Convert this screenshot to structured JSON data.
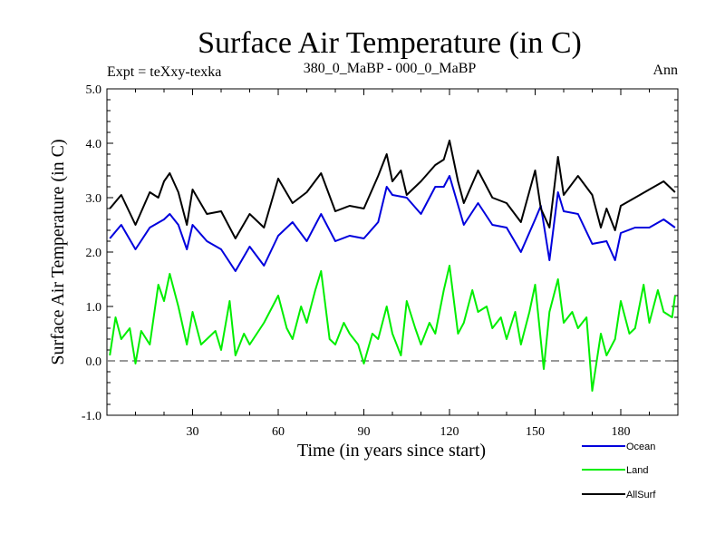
{
  "chart_data": {
    "type": "line",
    "title": "Surface Air Temperature (in C)",
    "subtitle_left": "Expt = teXxy-texka",
    "subtitle_center": "380_0_MaBP - 000_0_MaBP",
    "subtitle_right": "Ann",
    "xlabel": "Time (in years since start)",
    "ylabel": "Surface Air Temperature (in C)",
    "xlim": [
      0,
      200
    ],
    "ylim": [
      -1.0,
      5.0
    ],
    "xticks": [
      30,
      60,
      90,
      120,
      150,
      180
    ],
    "xtick_labels": [
      "30",
      "60",
      "90",
      "120",
      "150",
      "180"
    ],
    "yticks": [
      -1.0,
      0.0,
      1.0,
      2.0,
      3.0,
      4.0,
      5.0
    ],
    "ytick_labels": [
      "-1.0",
      "0.0",
      "1.0",
      "2.0",
      "3.0",
      "4.0",
      "5.0"
    ],
    "reference_line": 0.0,
    "legend_position": "bottom-right",
    "series": [
      {
        "name": "Ocean",
        "color": "#0000dd",
        "x": [
          1,
          5,
          10,
          15,
          20,
          22,
          25,
          28,
          30,
          35,
          40,
          45,
          50,
          55,
          60,
          65,
          70,
          75,
          80,
          85,
          90,
          95,
          98,
          100,
          105,
          110,
          115,
          118,
          120,
          125,
          130,
          135,
          140,
          145,
          150,
          152,
          155,
          158,
          160,
          165,
          170,
          175,
          178,
          180,
          185,
          190,
          195,
          199
        ],
        "values": [
          2.25,
          2.5,
          2.05,
          2.45,
          2.6,
          2.7,
          2.5,
          2.05,
          2.5,
          2.2,
          2.05,
          1.65,
          2.1,
          1.75,
          2.3,
          2.55,
          2.2,
          2.7,
          2.2,
          2.3,
          2.25,
          2.55,
          3.2,
          3.05,
          3.0,
          2.7,
          3.2,
          3.2,
          3.4,
          2.5,
          2.9,
          2.5,
          2.45,
          2.0,
          2.6,
          2.85,
          1.85,
          3.1,
          2.75,
          2.7,
          2.15,
          2.2,
          1.85,
          2.35,
          2.45,
          2.45,
          2.6,
          2.45
        ]
      },
      {
        "name": "Land",
        "color": "#00ee00",
        "x": [
          1,
          3,
          5,
          8,
          10,
          12,
          15,
          18,
          20,
          22,
          25,
          28,
          30,
          33,
          35,
          38,
          40,
          43,
          45,
          48,
          50,
          55,
          60,
          63,
          65,
          68,
          70,
          73,
          75,
          78,
          80,
          83,
          85,
          88,
          90,
          93,
          95,
          98,
          100,
          103,
          105,
          108,
          110,
          113,
          115,
          118,
          120,
          123,
          125,
          128,
          130,
          133,
          135,
          138,
          140,
          143,
          145,
          148,
          150,
          153,
          155,
          158,
          160,
          163,
          165,
          168,
          170,
          173,
          175,
          178,
          180,
          183,
          185,
          188,
          190,
          193,
          195,
          198,
          199
        ],
        "values": [
          0.1,
          0.8,
          0.4,
          0.6,
          -0.05,
          0.55,
          0.3,
          1.4,
          1.1,
          1.6,
          1.0,
          0.3,
          0.9,
          0.3,
          0.4,
          0.55,
          0.2,
          1.1,
          0.1,
          0.5,
          0.3,
          0.7,
          1.2,
          0.6,
          0.4,
          1.0,
          0.7,
          1.3,
          1.65,
          0.4,
          0.3,
          0.7,
          0.5,
          0.3,
          -0.05,
          0.5,
          0.4,
          1.0,
          0.5,
          0.1,
          1.1,
          0.6,
          0.3,
          0.7,
          0.5,
          1.3,
          1.75,
          0.5,
          0.7,
          1.3,
          0.9,
          1.0,
          0.6,
          0.8,
          0.4,
          0.9,
          0.3,
          0.9,
          1.4,
          -0.15,
          0.9,
          1.5,
          0.7,
          0.9,
          0.6,
          0.8,
          -0.55,
          0.5,
          0.1,
          0.4,
          1.1,
          0.5,
          0.6,
          1.4,
          0.7,
          1.3,
          0.9,
          0.8,
          1.2
        ]
      },
      {
        "name": "AllSurf",
        "color": "#000000",
        "x": [
          1,
          5,
          10,
          15,
          18,
          20,
          22,
          25,
          28,
          30,
          35,
          40,
          45,
          50,
          55,
          60,
          65,
          70,
          75,
          80,
          85,
          90,
          95,
          98,
          100,
          103,
          105,
          110,
          115,
          118,
          120,
          123,
          125,
          130,
          135,
          140,
          145,
          150,
          152,
          155,
          158,
          160,
          165,
          170,
          173,
          175,
          178,
          180,
          185,
          190,
          195,
          199
        ],
        "values": [
          2.8,
          3.05,
          2.5,
          3.1,
          3.0,
          3.3,
          3.45,
          3.1,
          2.5,
          3.15,
          2.7,
          2.75,
          2.25,
          2.7,
          2.45,
          3.35,
          2.9,
          3.1,
          3.45,
          2.75,
          2.85,
          2.8,
          3.4,
          3.8,
          3.3,
          3.5,
          3.05,
          3.3,
          3.6,
          3.7,
          4.05,
          3.3,
          2.9,
          3.5,
          3.0,
          2.9,
          2.55,
          3.5,
          2.8,
          2.45,
          3.75,
          3.05,
          3.4,
          3.05,
          2.45,
          2.8,
          2.4,
          2.85,
          3.0,
          3.15,
          3.3,
          3.1
        ]
      }
    ]
  }
}
